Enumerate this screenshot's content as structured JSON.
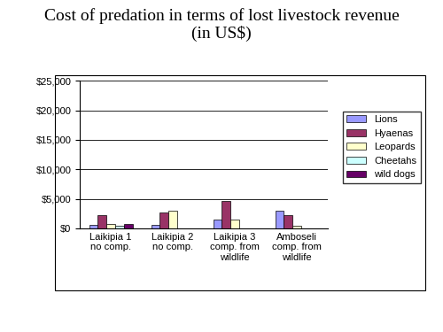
{
  "chart_data": {
    "type": "bar",
    "title": "Cost of predation in terms of lost livestock revenue\n(in US$)",
    "categories": [
      "Laikipia 1\nno comp.",
      "Laikipia 2\nno comp.",
      "Laikipia 3\ncomp. from\nwildlife",
      "Amboseli\ncomp. from\nwildlife"
    ],
    "series": [
      {
        "name": "Lions",
        "color": "#9999ff",
        "values": [
          600,
          600,
          1500,
          3000
        ]
      },
      {
        "name": "Hyaenas",
        "color": "#993366",
        "values": [
          2200,
          2700,
          4700,
          2300
        ]
      },
      {
        "name": "Leopards",
        "color": "#ffffcc",
        "values": [
          800,
          3000,
          1500,
          400
        ]
      },
      {
        "name": "Cheetahs",
        "color": "#ccffff",
        "values": [
          500,
          0,
          0,
          0
        ]
      },
      {
        "name": "wild dogs",
        "color": "#660066",
        "values": [
          700,
          0,
          0,
          0
        ]
      }
    ],
    "ylim": [
      0,
      25000
    ],
    "yticks": [
      {
        "value": 0,
        "label": "$0"
      },
      {
        "value": 5000,
        "label": "$5,000"
      },
      {
        "value": 10000,
        "label": "$10,000"
      },
      {
        "value": 15000,
        "label": "$15,000"
      },
      {
        "value": 20000,
        "label": "$20,000"
      },
      {
        "value": 25000,
        "label": "$25,000"
      }
    ],
    "grid": true,
    "legend": "right"
  }
}
